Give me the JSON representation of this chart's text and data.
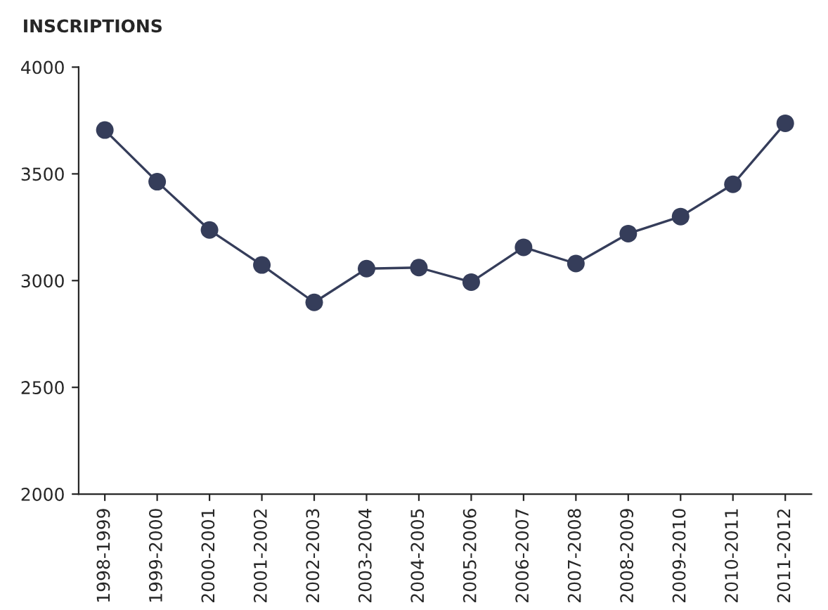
{
  "chart_data": {
    "type": "line",
    "title": "INSCRIPTIONS",
    "categories": [
      "1998-1999",
      "1999-2000",
      "2000-2001",
      "2001-2002",
      "2002-2003",
      "2003-2004",
      "2004-2005",
      "2005-2006",
      "2006-2007",
      "2007-2008",
      "2008-2009",
      "2009-2010",
      "2010-2011",
      "2011-2012"
    ],
    "series": [
      {
        "color": "#353d5a",
        "values": [
          3705,
          3463,
          3237,
          3073,
          2898,
          3056,
          3061,
          2993,
          3156,
          3080,
          3220,
          3300,
          3451,
          3737
        ]
      }
    ],
    "ylim": [
      2000,
      4000
    ],
    "yticks": [
      2000,
      2500,
      3000,
      3500,
      4000
    ],
    "grid": false,
    "marker": "circle",
    "line_style": "solid",
    "legend": false
  }
}
